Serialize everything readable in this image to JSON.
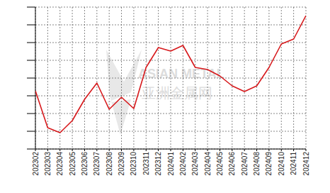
{
  "chart_data": {
    "type": "line",
    "categories": [
      "202302",
      "202303",
      "202304",
      "202305",
      "202306",
      "202307",
      "202308",
      "202309",
      "202310",
      "202311",
      "202312",
      "202401",
      "202402",
      "202403",
      "202404",
      "202405",
      "202406",
      "202407",
      "202408",
      "202409",
      "202410",
      "202411",
      "202412"
    ],
    "values": [
      3.28,
      1.2,
      0.92,
      1.6,
      2.8,
      3.72,
      2.24,
      2.92,
      2.28,
      4.6,
      5.72,
      5.52,
      5.84,
      4.6,
      4.48,
      4.12,
      3.56,
      3.24,
      3.56,
      4.6,
      5.92,
      6.2,
      7.52
    ],
    "color": "#d7191c",
    "ylim": [
      0,
      8
    ],
    "yticks": [
      0,
      1,
      2,
      3,
      4,
      5,
      6,
      7,
      8
    ],
    "grid": true,
    "tick_labels": "x",
    "annotations": [
      "ASIAN METAL",
      "亚洲金属网"
    ]
  }
}
